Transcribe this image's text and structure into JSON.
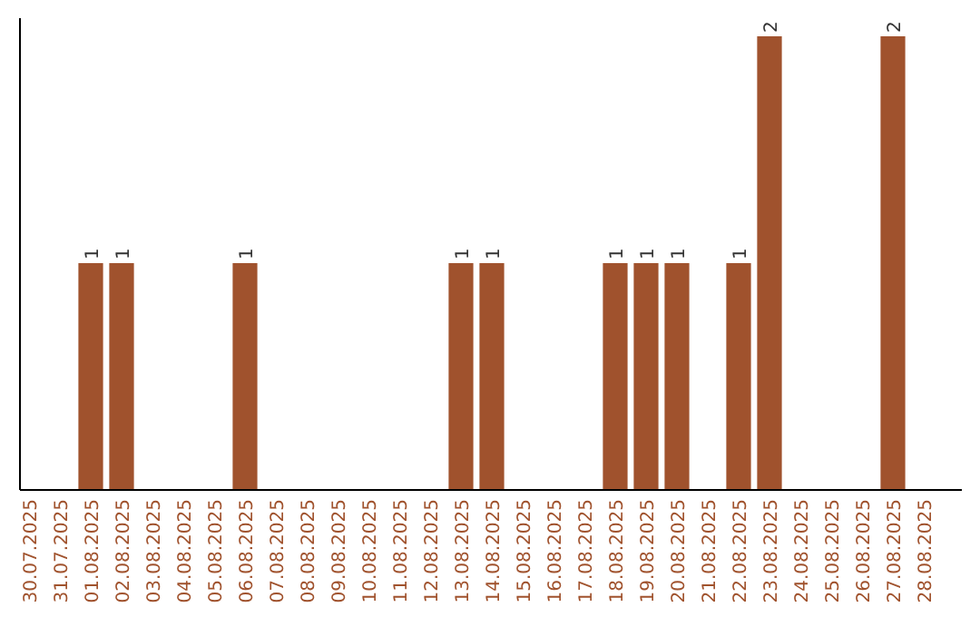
{
  "chart_data": {
    "type": "bar",
    "color": "#a0522d",
    "categories": [
      "30.07.2025",
      "31.07.2025",
      "01.08.2025",
      "02.08.2025",
      "03.08.2025",
      "04.08.2025",
      "05.08.2025",
      "06.08.2025",
      "07.08.2025",
      "08.08.2025",
      "09.08.2025",
      "10.08.2025",
      "11.08.2025",
      "12.08.2025",
      "13.08.2025",
      "14.08.2025",
      "15.08.2025",
      "16.08.2025",
      "17.08.2025",
      "18.08.2025",
      "19.08.2025",
      "20.08.2025",
      "21.08.2025",
      "22.08.2025",
      "23.08.2025",
      "24.08.2025",
      "25.08.2025",
      "26.08.2025",
      "27.08.2025",
      "28.08.2025"
    ],
    "values": [
      0,
      0,
      1,
      1,
      0,
      0,
      0,
      1,
      0,
      0,
      0,
      0,
      0,
      0,
      1,
      1,
      0,
      0,
      0,
      1,
      1,
      1,
      0,
      1,
      2,
      0,
      0,
      0,
      2,
      0
    ],
    "value_labels": [
      null,
      null,
      "1",
      "1",
      null,
      null,
      null,
      "1",
      null,
      null,
      null,
      null,
      null,
      null,
      "1",
      "1",
      null,
      null,
      null,
      "1",
      "1",
      "1",
      null,
      "1",
      "2",
      null,
      null,
      null,
      "2",
      null
    ]
  }
}
